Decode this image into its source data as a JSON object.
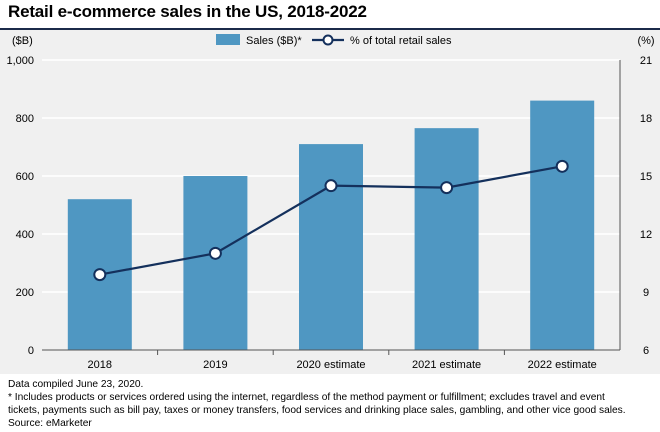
{
  "title": "Retail e-commerce sales in the US, 2018-2022",
  "colors": {
    "bar": "#4f97c2",
    "line": "#14305c",
    "background": "#f0f0f0",
    "grid": "#ffffff"
  },
  "chart_data": {
    "type": "bar",
    "categories": [
      "2018",
      "2019",
      "2020 estimate",
      "2021 estimate",
      "2022 estimate"
    ],
    "series": [
      {
        "name": "Sales ($B)*",
        "type": "bar",
        "axis": "left",
        "values": [
          520,
          600,
          710,
          765,
          860
        ]
      },
      {
        "name": "% of total retail sales",
        "type": "line",
        "axis": "right",
        "values": [
          9.9,
          11.0,
          14.5,
          14.4,
          15.5
        ]
      }
    ],
    "y_left": {
      "label": "($B)",
      "ylim": [
        0,
        1000
      ],
      "ticks": [
        "0",
        "200",
        "400",
        "600",
        "800",
        "1,000"
      ]
    },
    "y_right": {
      "label": "(%)",
      "ylim": [
        6,
        21
      ],
      "ticks": [
        "6",
        "9",
        "12",
        "15",
        "18",
        "21"
      ]
    },
    "legend": "top-center",
    "grid": true
  },
  "footnotes": {
    "compiled": "Data compiled June 23, 2020.",
    "note_line1": "* Includes products or services ordered using the internet, regardless of the method payment or fulfillment; excludes travel and event",
    "note_line2": "tickets, payments such as bill pay, taxes or money transfers, food services and drinking place sales, gambling, and other vice good sales.",
    "source": "Source: eMarketer"
  }
}
